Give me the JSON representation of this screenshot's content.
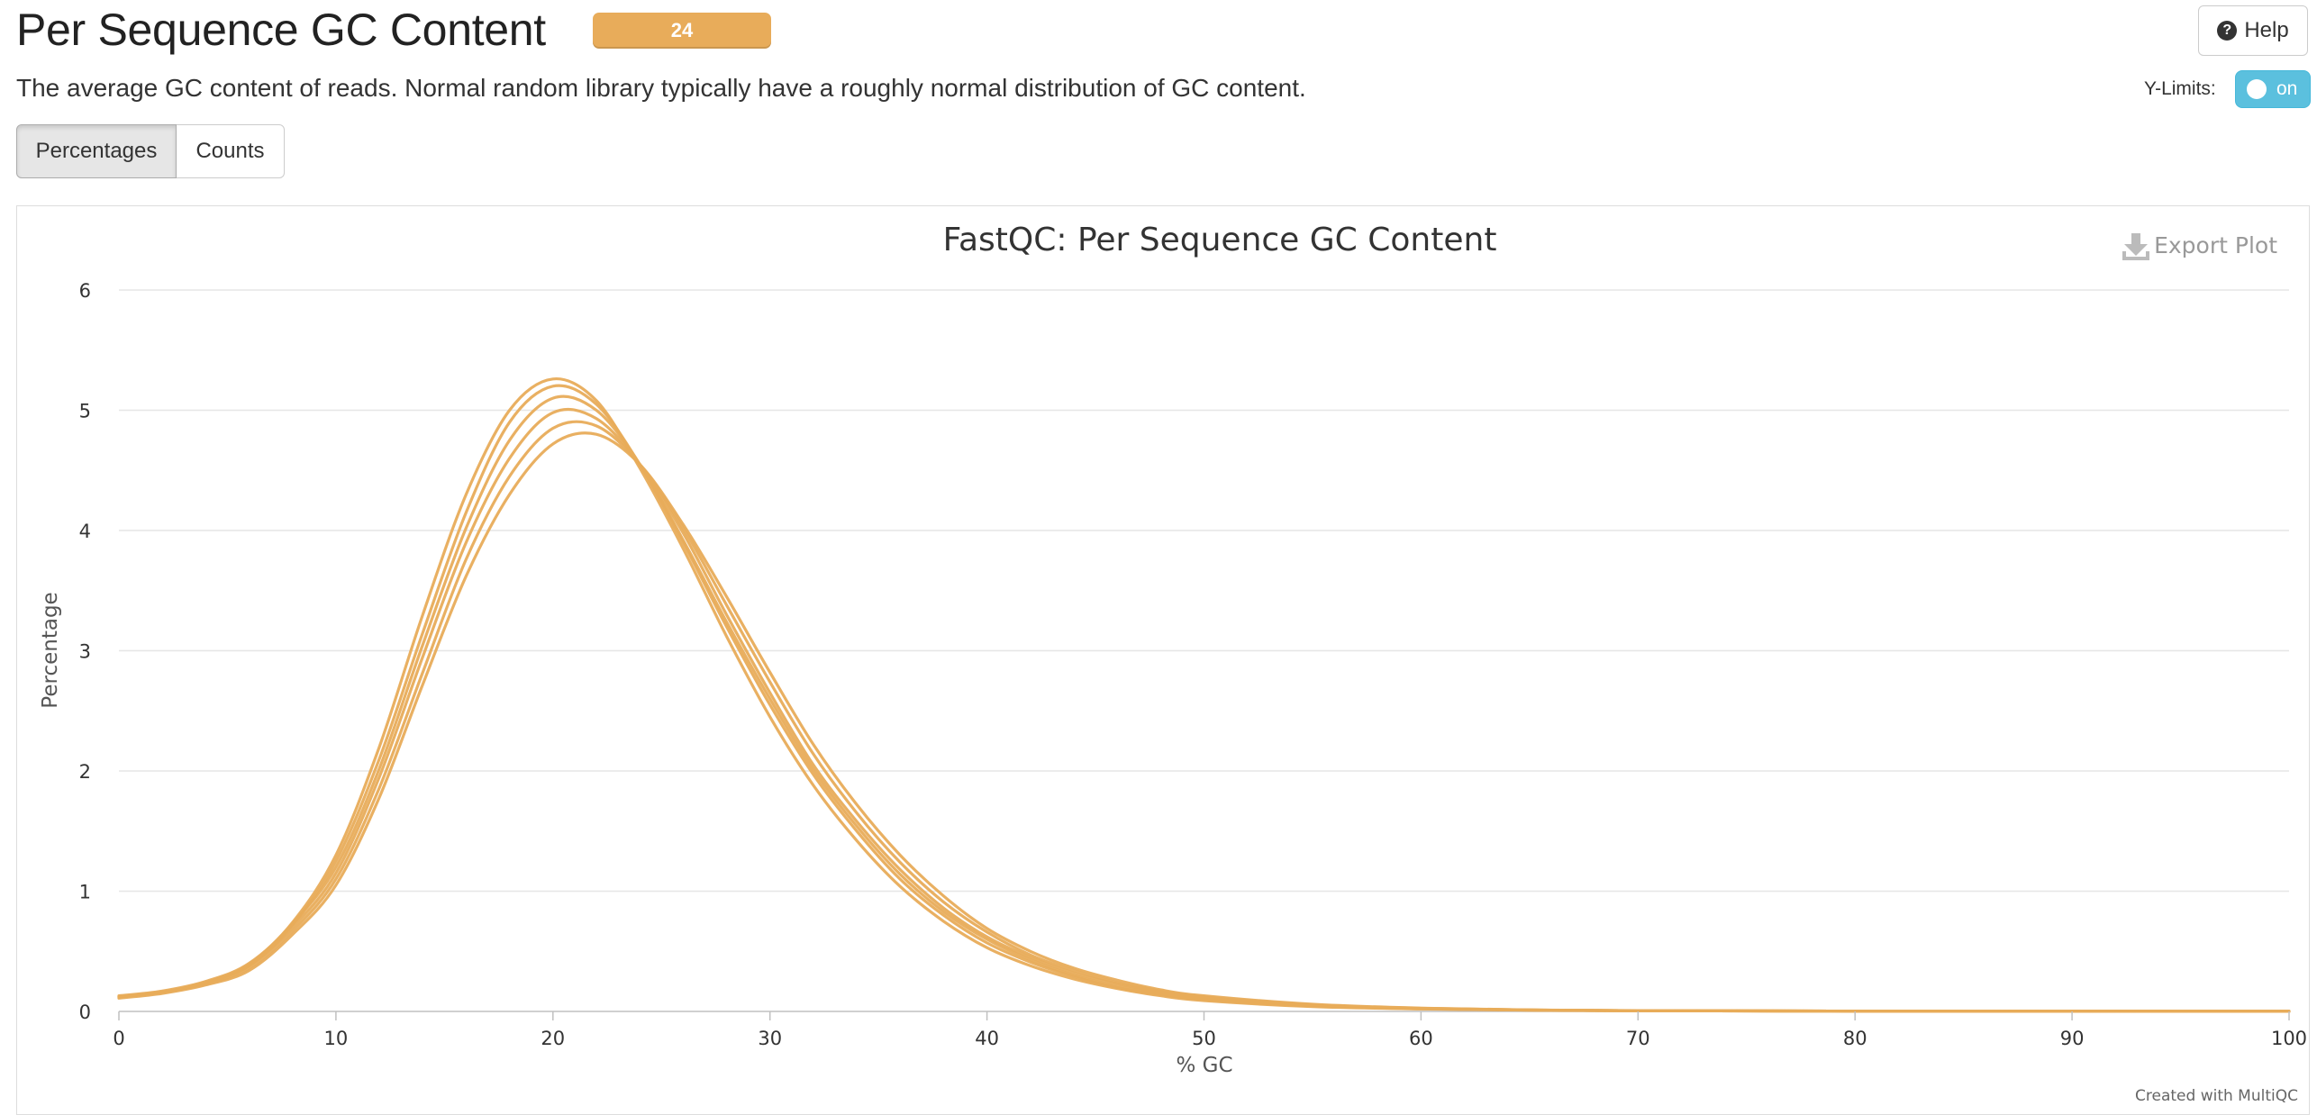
{
  "header": {
    "title": "Per Sequence GC Content",
    "badge": "24",
    "help_label": "Help",
    "description": "The average GC content of reads. Normal random library typically have a roughly normal distribution of GC content."
  },
  "ylimits": {
    "label": "Y-Limits:",
    "state": "on"
  },
  "tabs": [
    {
      "label": "Percentages",
      "active": true
    },
    {
      "label": "Counts",
      "active": false
    }
  ],
  "plot": {
    "export_label": "Export Plot",
    "credit": "Created with MultiQC",
    "series_color": "#e8ac5a"
  },
  "chart_data": {
    "type": "line",
    "title": "FastQC: Per Sequence GC Content",
    "xlabel": "% GC",
    "ylabel": "Percentage",
    "xlim": [
      0,
      100
    ],
    "ylim": [
      0,
      6
    ],
    "x_ticks": [
      0,
      10,
      20,
      30,
      40,
      50,
      60,
      70,
      80,
      90,
      100
    ],
    "y_ticks": [
      0,
      1,
      2,
      3,
      4,
      5,
      6
    ],
    "grid": true,
    "legend": "none",
    "x": [
      0,
      2,
      4,
      6,
      8,
      10,
      12,
      14,
      16,
      18,
      20,
      22,
      24,
      26,
      28,
      30,
      32,
      34,
      36,
      38,
      40,
      42,
      44,
      46,
      48,
      50,
      55,
      60,
      65,
      70,
      80,
      90,
      100
    ],
    "series": [
      {
        "values": [
          0.12,
          0.16,
          0.24,
          0.38,
          0.7,
          1.15,
          1.95,
          2.95,
          3.9,
          4.6,
          4.98,
          4.93,
          4.55,
          3.98,
          3.3,
          2.65,
          2.05,
          1.58,
          1.18,
          0.86,
          0.62,
          0.45,
          0.32,
          0.23,
          0.16,
          0.11,
          0.05,
          0.025,
          0.012,
          0.006,
          0.003,
          0.002,
          0.001
        ]
      },
      {
        "values": [
          0.12,
          0.16,
          0.24,
          0.38,
          0.72,
          1.25,
          2.1,
          3.15,
          4.15,
          4.9,
          5.2,
          5.05,
          4.55,
          3.9,
          3.2,
          2.55,
          1.97,
          1.5,
          1.1,
          0.8,
          0.57,
          0.41,
          0.29,
          0.2,
          0.14,
          0.1,
          0.045,
          0.022,
          0.011,
          0.006,
          0.003,
          0.002,
          0.001
        ]
      },
      {
        "values": [
          0.11,
          0.15,
          0.22,
          0.34,
          0.64,
          1.05,
          1.78,
          2.72,
          3.62,
          4.3,
          4.72,
          4.8,
          4.55,
          4.05,
          3.45,
          2.82,
          2.22,
          1.72,
          1.3,
          0.96,
          0.69,
          0.5,
          0.36,
          0.26,
          0.18,
          0.13,
          0.06,
          0.028,
          0.013,
          0.007,
          0.003,
          0.002,
          0.001
        ]
      },
      {
        "values": [
          0.13,
          0.17,
          0.25,
          0.4,
          0.74,
          1.3,
          2.2,
          3.3,
          4.3,
          5.0,
          5.26,
          5.08,
          4.52,
          3.85,
          3.12,
          2.45,
          1.88,
          1.42,
          1.04,
          0.75,
          0.53,
          0.38,
          0.27,
          0.19,
          0.13,
          0.09,
          0.04,
          0.02,
          0.01,
          0.005,
          0.003,
          0.002,
          0.001
        ]
      },
      {
        "values": [
          0.12,
          0.16,
          0.23,
          0.36,
          0.67,
          1.1,
          1.86,
          2.82,
          3.76,
          4.45,
          4.85,
          4.87,
          4.55,
          4.02,
          3.38,
          2.74,
          2.14,
          1.65,
          1.24,
          0.91,
          0.66,
          0.47,
          0.34,
          0.24,
          0.17,
          0.12,
          0.055,
          0.026,
          0.012,
          0.006,
          0.003,
          0.002,
          0.001
        ]
      },
      {
        "values": [
          0.12,
          0.16,
          0.24,
          0.39,
          0.73,
          1.2,
          2.02,
          3.05,
          4.02,
          4.75,
          5.1,
          5.0,
          4.55,
          3.92,
          3.24,
          2.6,
          2.01,
          1.54,
          1.14,
          0.83,
          0.6,
          0.43,
          0.3,
          0.21,
          0.15,
          0.1,
          0.047,
          0.023,
          0.011,
          0.006,
          0.003,
          0.002,
          0.001
        ]
      }
    ]
  }
}
